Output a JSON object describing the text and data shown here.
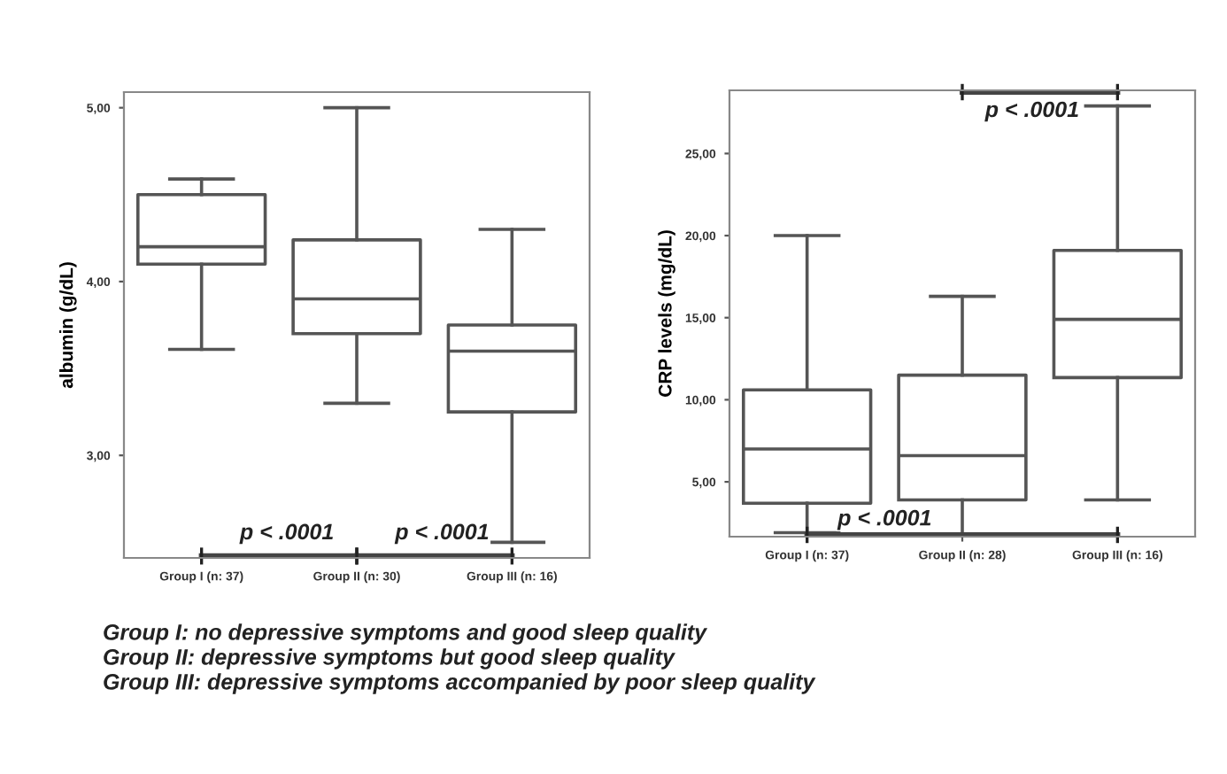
{
  "chart_data": [
    {
      "type": "box",
      "ylabel": "albumin (g/dL)",
      "categories": [
        "Group I (n: 37)",
        "Group II (n: 30)",
        "Group III (n: 16)"
      ],
      "boxes": [
        {
          "low": 3.61,
          "q1": 4.1,
          "median": 4.2,
          "q3": 4.5,
          "high": 4.59
        },
        {
          "low": 3.3,
          "q1": 3.7,
          "median": 3.9,
          "q3": 4.24,
          "high": 5.0
        },
        {
          "low": 2.5,
          "q1": 3.25,
          "median": 3.6,
          "q3": 3.75,
          "high": 4.3
        }
      ],
      "ylim": [
        2.41,
        5.09
      ],
      "yticks": [
        {
          "value": 3,
          "label": "3,00"
        },
        {
          "value": 4,
          "label": "4,00"
        },
        {
          "value": 5,
          "label": "5,00"
        }
      ],
      "grid": false,
      "annotations": [
        "p < .0001",
        "p < .0001",
        "Group I: no depressive symptoms and good sleep quality",
        "Group II: depressive symptoms but good sleep quality",
        "Group III: depressive symptoms accompanied by poor sleep quality"
      ]
    },
    {
      "type": "box",
      "ylabel": "CRP levels (mg/dL)",
      "categories": [
        "Group I (n: 37)",
        "Group II (n: 28)",
        "Group III (n: 16)"
      ],
      "boxes": [
        {
          "low": 1.9,
          "q1": 3.7,
          "median": 7.0,
          "q3": 10.6,
          "high": 20.0
        },
        {
          "low": 1.7,
          "q1": 3.9,
          "median": 6.6,
          "q3": 11.5,
          "high": 16.3
        },
        {
          "low": 3.9,
          "q1": 11.35,
          "median": 14.9,
          "q3": 19.1,
          "high": 27.9
        }
      ],
      "ylim": [
        1.66,
        28.85
      ],
      "yticks": [
        {
          "value": 5,
          "label": "5,00"
        },
        {
          "value": 10,
          "label": "10,00"
        },
        {
          "value": 15,
          "label": "15,00"
        },
        {
          "value": 20,
          "label": "20,00"
        },
        {
          "value": 25,
          "label": "25,00"
        }
      ],
      "grid": false,
      "annotations": [
        "p < .0001",
        "p < .0001"
      ]
    }
  ]
}
